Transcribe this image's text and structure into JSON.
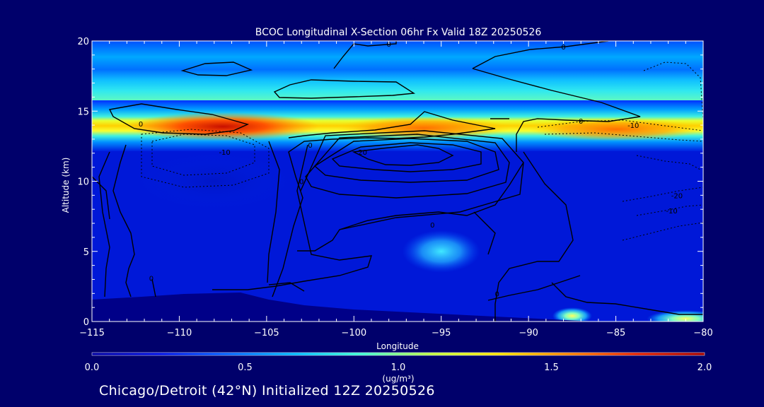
{
  "chart_data": {
    "type": "heatmap",
    "title": "BCOC Longitudinal X-Section 06hr  Fx Valid 18Z 20250526",
    "xlabel": "Longitude",
    "ylabel": "Altitude (km)",
    "xlim": [
      -115,
      -80
    ],
    "ylim": [
      0,
      20
    ],
    "x_ticks": [
      -115,
      -110,
      -105,
      -100,
      -95,
      -90,
      -85,
      -80
    ],
    "x_tick_labels": [
      "-115",
      "-110",
      "-105",
      "-100",
      "-95",
      "-90",
      "-85",
      "-80"
    ],
    "y_ticks": [
      0,
      5,
      10,
      15,
      20
    ],
    "y_tick_labels": [
      "0",
      "5",
      "10",
      "15",
      "20"
    ],
    "colorbar": {
      "min": 0.0,
      "max": 2.0,
      "ticks": [
        0.0,
        0.5,
        1.0,
        1.5,
        2.0
      ],
      "tick_labels": [
        "0.0",
        "0.5",
        "1.0",
        "1.5",
        "2.0"
      ],
      "units": "(ug/m³)",
      "colors": [
        "#0000a0",
        "#0010e0",
        "#0060ff",
        "#00b8ff",
        "#40ffd0",
        "#c0ff40",
        "#ffe000",
        "#ff8000",
        "#e02000",
        "#a00000"
      ]
    },
    "field_features": [
      {
        "description": "peak concentration band",
        "lon_range": [
          -113,
          -102
        ],
        "alt_km": 13.9,
        "value": 1.7
      },
      {
        "description": "elevated band",
        "lon_range": [
          -101,
          -91
        ],
        "alt_km": 13.8,
        "value": 1.3
      },
      {
        "description": "elevated band east",
        "lon_range": [
          -90,
          -80
        ],
        "alt_km": 13.7,
        "value": 1.1
      },
      {
        "description": "upper tropospheric layer",
        "lon_range": [
          -115,
          -80
        ],
        "alt_km": 15.5,
        "value": 0.8
      },
      {
        "description": "mid-level plume",
        "lon": -95,
        "alt_km": 5.0,
        "value": 0.6
      },
      {
        "description": "surface maximum",
        "lon": -87.5,
        "alt_km": 0.4,
        "value": 1.2
      },
      {
        "description": "surface maximum east",
        "lon": -81,
        "alt_km": 0.2,
        "value": 0.9
      }
    ],
    "contour_labels": [
      {
        "text": "0",
        "lon": -98,
        "alt_km": 19.8
      },
      {
        "text": "0",
        "lon": -88,
        "alt_km": 19.6
      },
      {
        "text": "0",
        "lon": -112.2,
        "alt_km": 14.1
      },
      {
        "text": "0",
        "lon": -87,
        "alt_km": 14.3
      },
      {
        "text": "-10",
        "lon": -84,
        "alt_km": 14
      },
      {
        "text": "0",
        "lon": -102.5,
        "alt_km": 12.6
      },
      {
        "text": "-10",
        "lon": -107.4,
        "alt_km": 12.1
      },
      {
        "text": "20",
        "lon": -99.5,
        "alt_km": 12.1
      },
      {
        "text": "0",
        "lon": -103,
        "alt_km": 10
      },
      {
        "text": "-20",
        "lon": -81.5,
        "alt_km": 9
      },
      {
        "text": "-10",
        "lon": -81.8,
        "alt_km": 7.9
      },
      {
        "text": "0",
        "lon": -95.5,
        "alt_km": 6.9
      },
      {
        "text": "0",
        "lon": -91.8,
        "alt_km": 2
      },
      {
        "text": "0",
        "lon": -111.6,
        "alt_km": 3.1
      }
    ]
  },
  "footer": "Chicago/Detroit (42°N) Initialized 12Z 20250526"
}
